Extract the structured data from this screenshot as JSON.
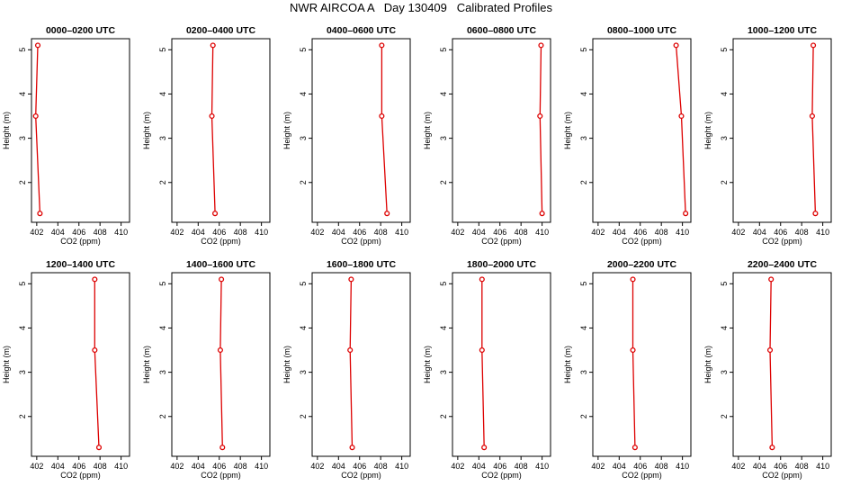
{
  "page": {
    "title": "NWR AIRCOA A   Day 130409   Calibrated Profiles"
  },
  "chart_data": [
    {
      "type": "line",
      "title": "0000–0200 UTC",
      "xlabel": "CO2 (ppm)",
      "ylabel": "Height (m)",
      "xlim": [
        401.5,
        410.8
      ],
      "ylim": [
        1.1,
        5.25
      ],
      "xticks": [
        402,
        404,
        406,
        408,
        410
      ],
      "yticks": [
        2,
        3,
        4,
        5
      ],
      "series": [
        {
          "x": [
            402.3,
            401.9,
            402.1
          ],
          "y": [
            1.3,
            3.5,
            5.1
          ]
        }
      ]
    },
    {
      "type": "line",
      "title": "0200–0400 UTC",
      "xlabel": "CO2 (ppm)",
      "ylabel": "Height (m)",
      "xlim": [
        401.5,
        410.8
      ],
      "ylim": [
        1.1,
        5.25
      ],
      "xticks": [
        402,
        404,
        406,
        408,
        410
      ],
      "yticks": [
        2,
        3,
        4,
        5
      ],
      "series": [
        {
          "x": [
            405.6,
            405.3,
            405.4
          ],
          "y": [
            1.3,
            3.5,
            5.1
          ]
        }
      ]
    },
    {
      "type": "line",
      "title": "0400–0600 UTC",
      "xlabel": "CO2 (ppm)",
      "ylabel": "Height (m)",
      "xlim": [
        401.5,
        410.8
      ],
      "ylim": [
        1.1,
        5.25
      ],
      "xticks": [
        402,
        404,
        406,
        408,
        410
      ],
      "yticks": [
        2,
        3,
        4,
        5
      ],
      "series": [
        {
          "x": [
            408.6,
            408.1,
            408.1
          ],
          "y": [
            1.3,
            3.5,
            5.1
          ]
        }
      ]
    },
    {
      "type": "line",
      "title": "0600–0800 UTC",
      "xlabel": "CO2 (ppm)",
      "ylabel": "Height (m)",
      "xlim": [
        401.5,
        410.8
      ],
      "ylim": [
        1.1,
        5.25
      ],
      "xticks": [
        402,
        404,
        406,
        408,
        410
      ],
      "yticks": [
        2,
        3,
        4,
        5
      ],
      "series": [
        {
          "x": [
            410.0,
            409.8,
            409.9
          ],
          "y": [
            1.3,
            3.5,
            5.1
          ]
        }
      ]
    },
    {
      "type": "line",
      "title": "0800–1000 UTC",
      "xlabel": "CO2 (ppm)",
      "ylabel": "Height (m)",
      "xlim": [
        401.5,
        410.8
      ],
      "ylim": [
        1.1,
        5.25
      ],
      "xticks": [
        402,
        404,
        406,
        408,
        410
      ],
      "yticks": [
        2,
        3,
        4,
        5
      ],
      "series": [
        {
          "x": [
            410.3,
            409.9,
            409.4
          ],
          "y": [
            1.3,
            3.5,
            5.1
          ]
        }
      ]
    },
    {
      "type": "line",
      "title": "1000–1200 UTC",
      "xlabel": "CO2 (ppm)",
      "ylabel": "Height (m)",
      "xlim": [
        401.5,
        410.8
      ],
      "ylim": [
        1.1,
        5.25
      ],
      "xticks": [
        402,
        404,
        406,
        408,
        410
      ],
      "yticks": [
        2,
        3,
        4,
        5
      ],
      "series": [
        {
          "x": [
            409.3,
            409.0,
            409.1
          ],
          "y": [
            1.3,
            3.5,
            5.1
          ]
        }
      ]
    },
    {
      "type": "line",
      "title": "1200–1400 UTC",
      "xlabel": "CO2 (ppm)",
      "ylabel": "Height (m)",
      "xlim": [
        401.5,
        410.8
      ],
      "ylim": [
        1.1,
        5.25
      ],
      "xticks": [
        402,
        404,
        406,
        408,
        410
      ],
      "yticks": [
        2,
        3,
        4,
        5
      ],
      "series": [
        {
          "x": [
            407.9,
            407.5,
            407.5
          ],
          "y": [
            1.3,
            3.5,
            5.1
          ]
        }
      ]
    },
    {
      "type": "line",
      "title": "1400–1600 UTC",
      "xlabel": "CO2 (ppm)",
      "ylabel": "Height (m)",
      "xlim": [
        401.5,
        410.8
      ],
      "ylim": [
        1.1,
        5.25
      ],
      "xticks": [
        402,
        404,
        406,
        408,
        410
      ],
      "yticks": [
        2,
        3,
        4,
        5
      ],
      "series": [
        {
          "x": [
            406.3,
            406.1,
            406.2
          ],
          "y": [
            1.3,
            3.5,
            5.1
          ]
        }
      ]
    },
    {
      "type": "line",
      "title": "1600–1800 UTC",
      "xlabel": "CO2 (ppm)",
      "ylabel": "Height (m)",
      "xlim": [
        401.5,
        410.8
      ],
      "ylim": [
        1.1,
        5.25
      ],
      "xticks": [
        402,
        404,
        406,
        408,
        410
      ],
      "yticks": [
        2,
        3,
        4,
        5
      ],
      "series": [
        {
          "x": [
            405.3,
            405.1,
            405.2
          ],
          "y": [
            1.3,
            3.5,
            5.1
          ]
        }
      ]
    },
    {
      "type": "line",
      "title": "1800–2000 UTC",
      "xlabel": "CO2 (ppm)",
      "ylabel": "Height (m)",
      "xlim": [
        401.5,
        410.8
      ],
      "ylim": [
        1.1,
        5.25
      ],
      "xticks": [
        402,
        404,
        406,
        408,
        410
      ],
      "yticks": [
        2,
        3,
        4,
        5
      ],
      "series": [
        {
          "x": [
            404.5,
            404.3,
            404.3
          ],
          "y": [
            1.3,
            3.5,
            5.1
          ]
        }
      ]
    },
    {
      "type": "line",
      "title": "2000–2200 UTC",
      "xlabel": "CO2 (ppm)",
      "ylabel": "Height (m)",
      "xlim": [
        401.5,
        410.8
      ],
      "ylim": [
        1.1,
        5.25
      ],
      "xticks": [
        402,
        404,
        406,
        408,
        410
      ],
      "yticks": [
        2,
        3,
        4,
        5
      ],
      "series": [
        {
          "x": [
            405.5,
            405.3,
            405.3
          ],
          "y": [
            1.3,
            3.5,
            5.1
          ]
        }
      ]
    },
    {
      "type": "line",
      "title": "2200–2400 UTC",
      "xlabel": "CO2 (ppm)",
      "ylabel": "Height (m)",
      "xlim": [
        401.5,
        410.8
      ],
      "ylim": [
        1.1,
        5.25
      ],
      "xticks": [
        402,
        404,
        406,
        408,
        410
      ],
      "yticks": [
        2,
        3,
        4,
        5
      ],
      "series": [
        {
          "x": [
            405.2,
            405.0,
            405.1
          ],
          "y": [
            1.3,
            3.5,
            5.1
          ]
        }
      ]
    }
  ],
  "style": {
    "line_color": "#dd0000",
    "marker_color": "#dd0000",
    "axis_color": "#000000"
  }
}
